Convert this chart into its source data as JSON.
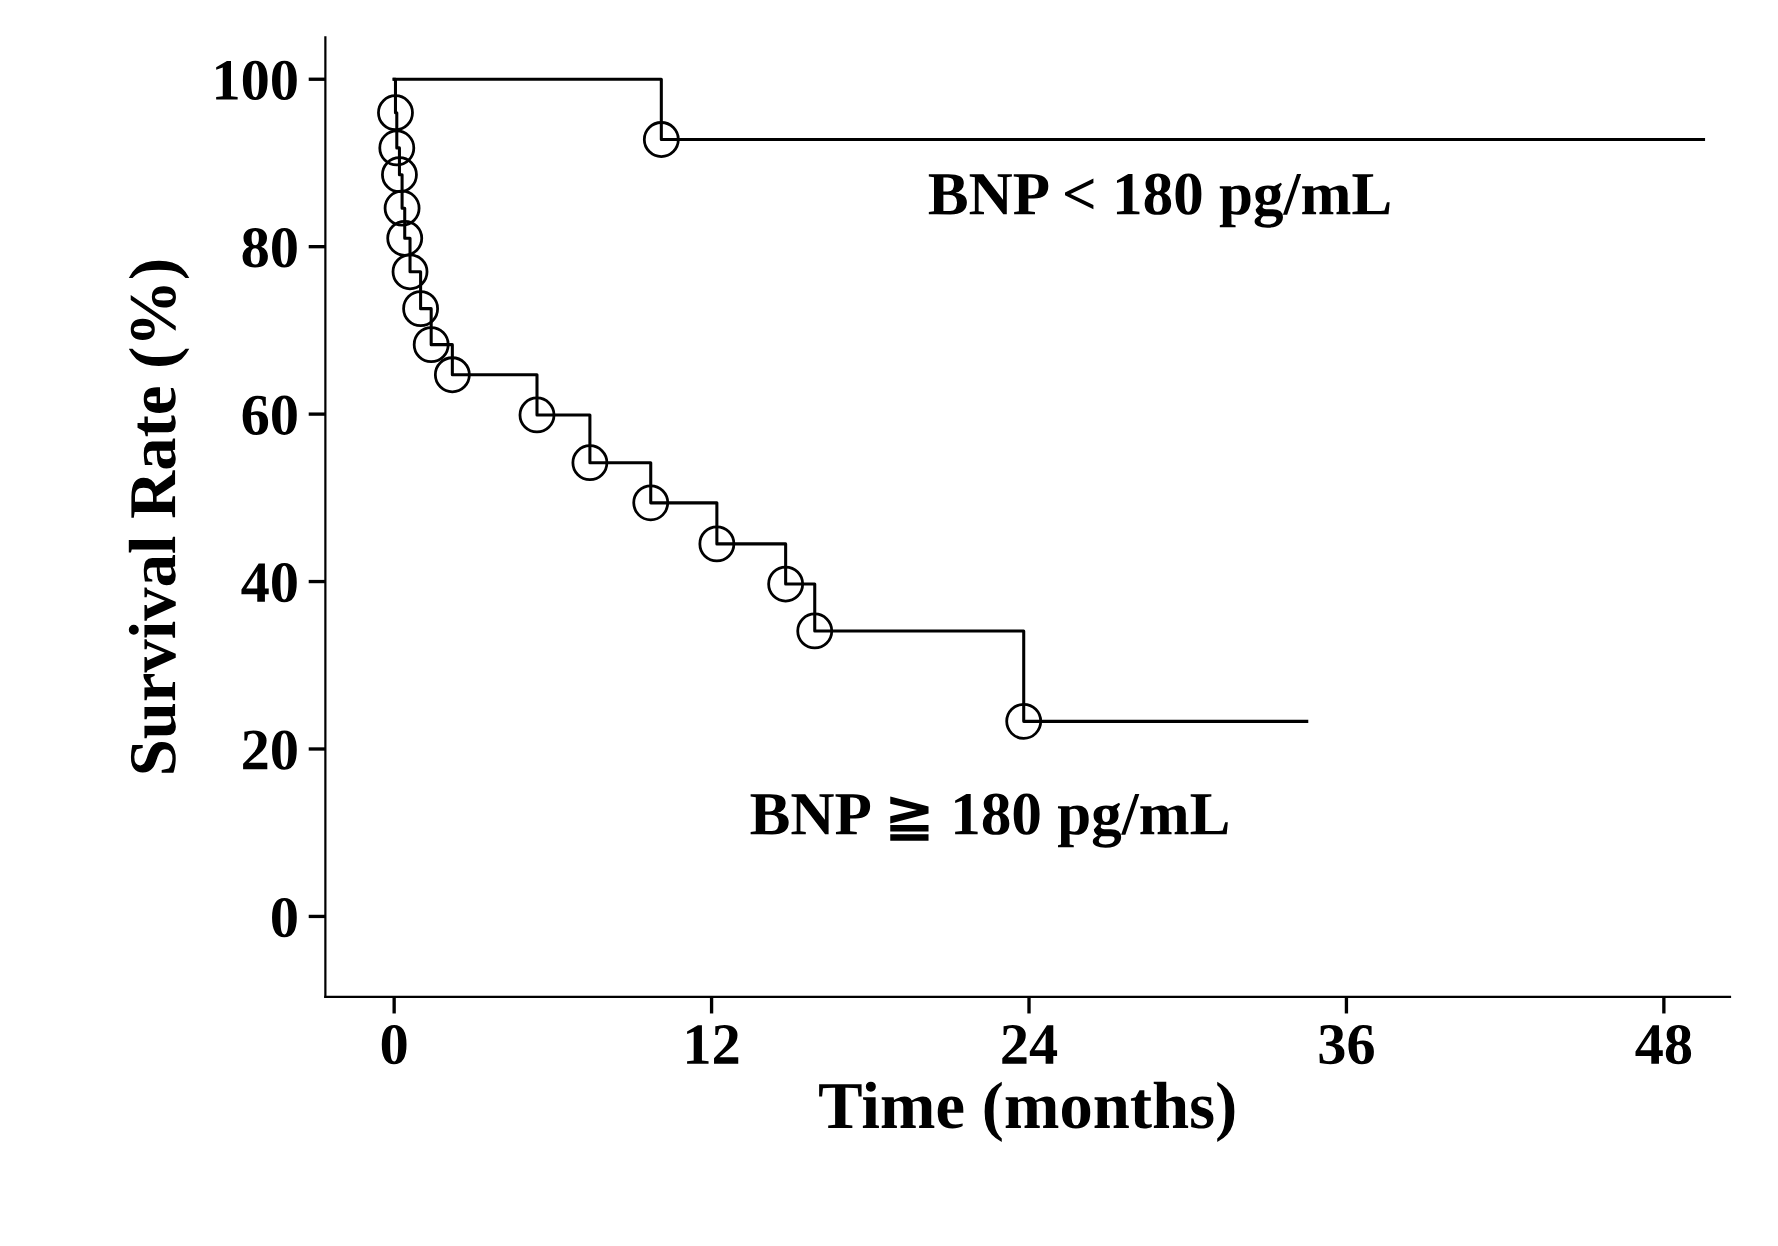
{
  "chart_data": {
    "type": "step",
    "xlabel": "Time (months)",
    "ylabel": "Survival Rate (%)",
    "xlim": [
      -2.6,
      50.5
    ],
    "ylim": [
      -9.6,
      105
    ],
    "xticks": [
      0,
      12,
      24,
      36,
      48
    ],
    "yticks": [
      0,
      20,
      40,
      60,
      80,
      100
    ],
    "grid": false,
    "legend": false,
    "series": [
      {
        "color": "#000000",
        "marker": "none",
        "x": [
          0,
          10.1,
          49.5
        ],
        "values": [
          100,
          92.8,
          92.8
        ]
      },
      {
        "type": "scatter",
        "color": "#000000",
        "marker": "circle",
        "x": [
          10.1
        ],
        "values": [
          92.8
        ]
      },
      {
        "color": "#000000",
        "marker": "none",
        "x": [
          0,
          0.05,
          0.1,
          0.2,
          0.3,
          0.4,
          0.6,
          1.0,
          1.4,
          2.2,
          5.4,
          7.4,
          9.7,
          12.2,
          14.8,
          15.9,
          23.8,
          34.5
        ],
        "values": [
          100,
          96,
          91.8,
          88.6,
          84.6,
          81,
          77,
          72.6,
          68.3,
          64.7,
          59.9,
          54.2,
          49.4,
          44.5,
          39.7,
          34.1,
          23.3,
          23.3
        ]
      },
      {
        "type": "scatter",
        "color": "#000000",
        "marker": "circle",
        "x": [
          0.05,
          0.1,
          0.2,
          0.3,
          0.4,
          0.6,
          1.0,
          1.4,
          2.2,
          5.4,
          7.4,
          9.7,
          12.2,
          14.8,
          15.9,
          23.8
        ],
        "values": [
          96,
          91.8,
          88.6,
          84.6,
          81,
          77,
          72.6,
          68.3,
          64.7,
          59.9,
          54.2,
          49.4,
          44.5,
          39.7,
          34.1,
          23.3
        ]
      }
    ],
    "annotations": [
      "BNP < 180 pg/mL",
      "BNP ≧ 180 pg/mL"
    ]
  }
}
